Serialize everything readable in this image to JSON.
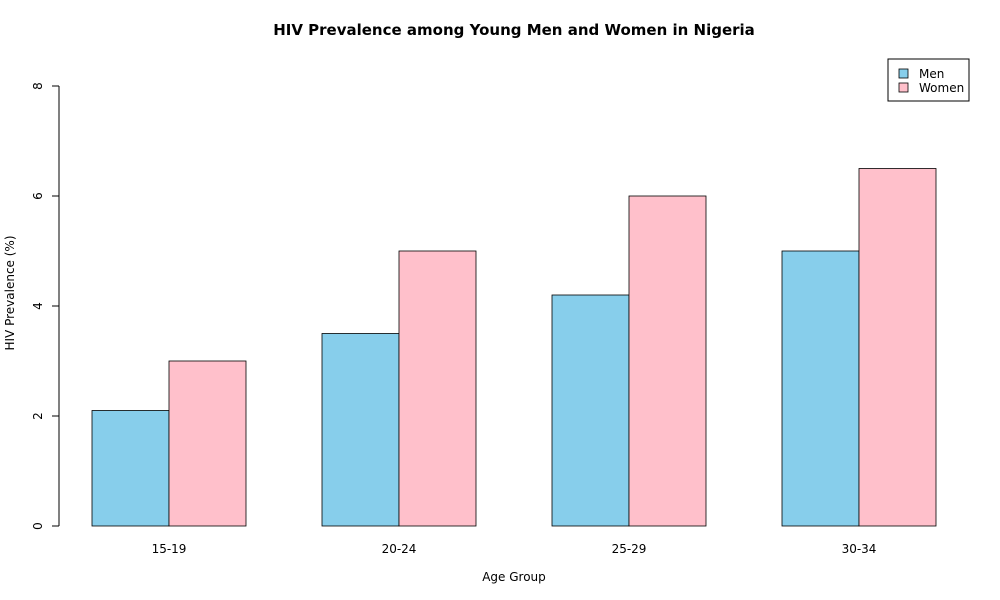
{
  "chart_data": {
    "type": "bar",
    "title": "HIV Prevalence among Young Men and Women in Nigeria",
    "xlabel": "Age Group",
    "ylabel": "HIV Prevalence (%)",
    "categories": [
      "15-19",
      "20-24",
      "25-29",
      "30-34"
    ],
    "series": [
      {
        "name": "Men",
        "values": [
          2.1,
          3.5,
          4.2,
          5.0
        ],
        "color": "#87CEEB"
      },
      {
        "name": "Women",
        "values": [
          3.0,
          5.0,
          6.0,
          6.5
        ],
        "color": "#FFC0CB"
      }
    ],
    "ylim": [
      0,
      8
    ],
    "yticks": [
      "0",
      "2",
      "4",
      "6",
      "8"
    ],
    "legend": "top-right",
    "grid": false
  }
}
